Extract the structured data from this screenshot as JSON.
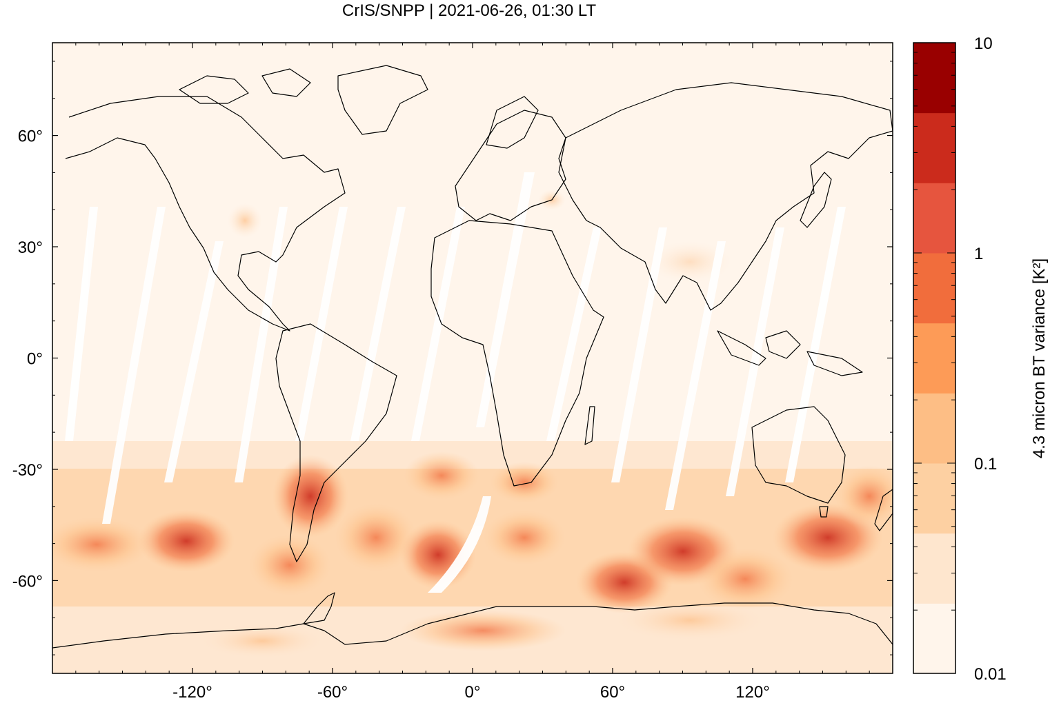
{
  "title": "CrIS/SNPP | 2021-06-26, 01:30 LT",
  "map": {
    "lon_range": [
      -180,
      180
    ],
    "lat_range": [
      -85,
      85
    ],
    "x_ticks": [
      {
        "value": -120,
        "label": "-120°"
      },
      {
        "value": -60,
        "label": "-60°"
      },
      {
        "value": 0,
        "label": "0°"
      },
      {
        "value": 60,
        "label": "60°"
      },
      {
        "value": 120,
        "label": "120°"
      }
    ],
    "y_ticks": [
      {
        "value": 60,
        "label": "60°"
      },
      {
        "value": 30,
        "label": "30°"
      },
      {
        "value": 0,
        "label": "0°"
      },
      {
        "value": -30,
        "label": "-30°"
      },
      {
        "value": -60,
        "label": "-60°"
      }
    ],
    "background_color": "#fff5eb"
  },
  "colorbar": {
    "label": "4.3 micron BT variance [K²]",
    "scale": "log",
    "range": [
      0.01,
      10
    ],
    "tick_labels": [
      "10",
      "1",
      "0.1",
      "0.01"
    ],
    "colors": [
      "#fff5eb",
      "#fee6ce",
      "#fdd0a2",
      "#fdbe85",
      "#fd9b57",
      "#f16d3c",
      "#e6553e",
      "#cb2b1c",
      "#990000"
    ]
  }
}
